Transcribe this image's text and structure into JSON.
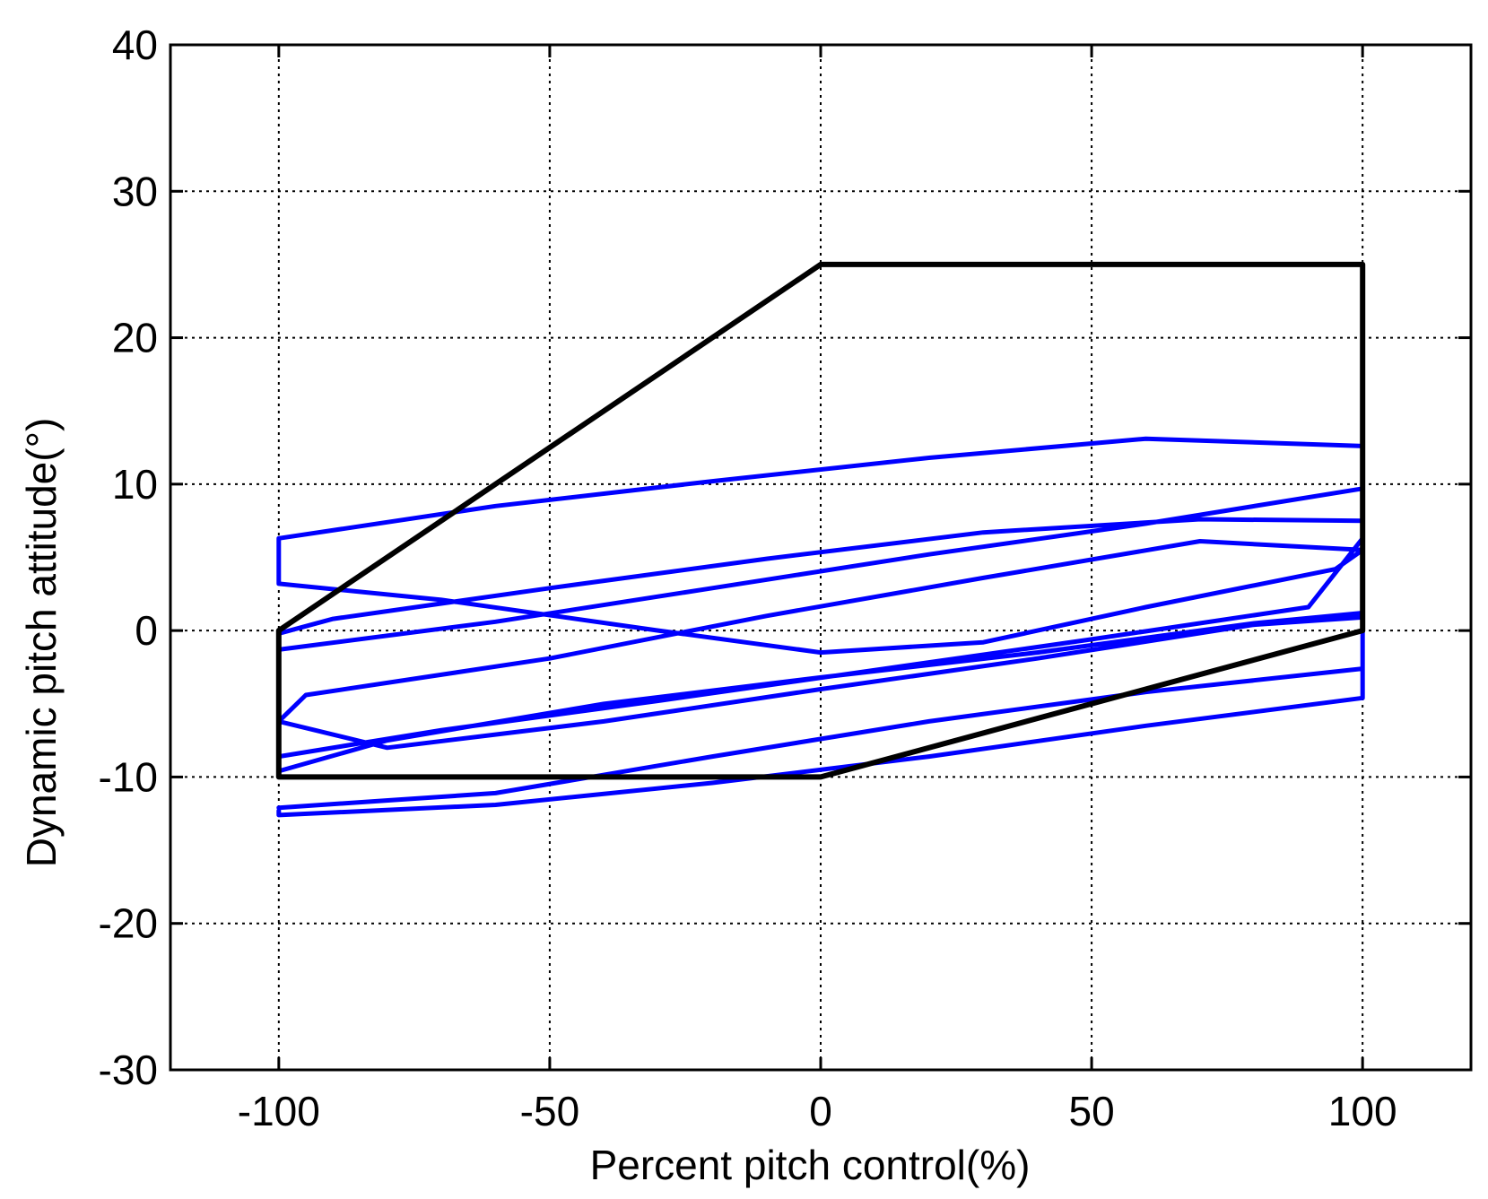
{
  "chart_data": {
    "type": "line",
    "title": "",
    "xlabel": "Percent pitch control(%)",
    "ylabel": "Dynamic pitch attitude(°)",
    "xlim": [
      -120,
      120
    ],
    "ylim": [
      -30,
      40
    ],
    "xticks": [
      -100,
      -50,
      0,
      50,
      100
    ],
    "yticks": [
      -30,
      -20,
      -10,
      0,
      10,
      20,
      30,
      40
    ],
    "xtick_labels": [
      "-100",
      "-50",
      "0",
      "50",
      "100"
    ],
    "ytick_labels": [
      "-30",
      "-20",
      "-10",
      "0",
      "10",
      "20",
      "30",
      "40"
    ],
    "grid": true,
    "grid_style": "dotted",
    "legend": "none",
    "series": [
      {
        "role": "boundary",
        "color": "#000000",
        "x": [
          -100,
          0,
          100,
          100,
          0,
          -100,
          -100
        ],
        "y": [
          0,
          25,
          25,
          0,
          -10,
          -10,
          0
        ]
      },
      {
        "role": "trajectory",
        "color": "#0000ff",
        "x": [
          -100,
          -100,
          -60,
          -20,
          20,
          60,
          100,
          100,
          80,
          40,
          0,
          -40,
          -80,
          -100,
          -100,
          -70,
          -30,
          10,
          50,
          90,
          100,
          100,
          70,
          30,
          -10,
          -50,
          -90,
          -100,
          -100,
          -60,
          -20,
          20,
          60,
          100,
          100,
          60,
          20,
          -20,
          -60,
          -100,
          -100,
          -70,
          -30,
          0,
          30,
          60,
          95,
          100,
          70,
          30,
          -10,
          -50,
          -95,
          -100,
          -80,
          -40,
          0,
          40,
          80,
          100,
          100,
          60,
          20,
          -20,
          -60,
          -100
        ],
        "y": [
          -12.3,
          -12.6,
          -11.9,
          -10.4,
          -8.6,
          -6.5,
          -4.6,
          1.2,
          0.5,
          -1.5,
          -3.2,
          -5.0,
          -7.5,
          -9.6,
          -8.6,
          -6.8,
          -4.8,
          -2.7,
          -0.6,
          1.6,
          6.3,
          7.5,
          7.6,
          6.7,
          4.9,
          2.9,
          0.8,
          -0.2,
          -1.3,
          0.6,
          2.9,
          5.2,
          7.3,
          9.7,
          12.6,
          13.1,
          11.8,
          10.2,
          8.5,
          6.3,
          3.2,
          2.1,
          0.0,
          -1.5,
          -0.8,
          1.6,
          4.2,
          5.5,
          6.1,
          3.6,
          1.0,
          -1.9,
          -4.4,
          -6.2,
          -8.0,
          -6.2,
          -4.0,
          -1.9,
          0.4,
          0.9,
          -2.6,
          -4.2,
          -6.2,
          -8.6,
          -11.1,
          -12.1
        ]
      }
    ]
  }
}
